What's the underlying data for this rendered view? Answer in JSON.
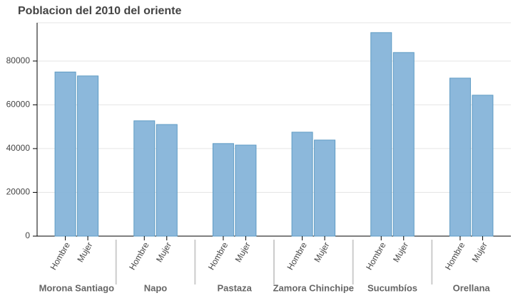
{
  "chart_data": {
    "type": "bar",
    "title": "Poblacion del 2010 del oriente",
    "categories": [
      "Morona Santiago",
      "Napo",
      "Pastaza",
      "Zamora Chinchipe",
      "Sucumbíos",
      "Orellana"
    ],
    "series": [
      {
        "name": "Hombre",
        "color": "#86b4d9",
        "values": [
          75000,
          52700,
          42300,
          47500,
          93000,
          72200
        ]
      },
      {
        "name": "Mujer",
        "color": "#86b4d9",
        "values": [
          73200,
          51000,
          41600,
          43900,
          83900,
          64400
        ]
      }
    ],
    "ylim": [
      0,
      97500
    ],
    "yticks": [
      0,
      20000,
      40000,
      60000,
      80000
    ],
    "grid": true
  }
}
